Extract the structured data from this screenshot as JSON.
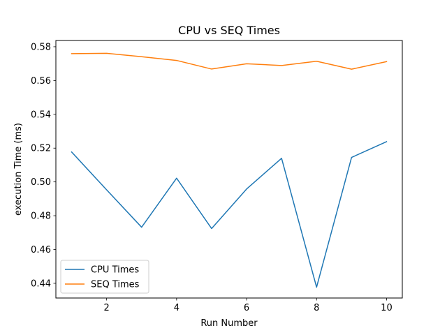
{
  "chart_data": {
    "type": "line",
    "title": "CPU vs SEQ Times",
    "xlabel": "Run Number",
    "ylabel": "execution Time (ms)",
    "x": [
      1,
      2,
      3,
      4,
      5,
      6,
      7,
      8,
      9,
      10
    ],
    "xlim": [
      0.55,
      10.45
    ],
    "ylim": [
      0.4313,
      0.5837
    ],
    "xticks": [
      2,
      4,
      6,
      8,
      10
    ],
    "xtick_labels": [
      "2",
      "4",
      "6",
      "8",
      "10"
    ],
    "yticks": [
      0.44,
      0.46,
      0.48,
      0.5,
      0.52,
      0.54,
      0.56,
      0.58
    ],
    "ytick_labels": [
      "0.44",
      "0.46",
      "0.48",
      "0.50",
      "0.52",
      "0.54",
      "0.56",
      "0.58"
    ],
    "grid": false,
    "legend_position": "lower-left",
    "series": [
      {
        "name": "CPU Times",
        "color": "#1f77b4",
        "values": [
          0.5177,
          0.4953,
          0.4732,
          0.5022,
          0.4724,
          0.4958,
          0.514,
          0.4377,
          0.5145,
          0.5238
        ]
      },
      {
        "name": "SEQ Times",
        "color": "#ff7f0e",
        "values": [
          0.5759,
          0.5761,
          0.5741,
          0.5719,
          0.5668,
          0.5699,
          0.5689,
          0.5714,
          0.5667,
          0.5712
        ]
      }
    ]
  }
}
